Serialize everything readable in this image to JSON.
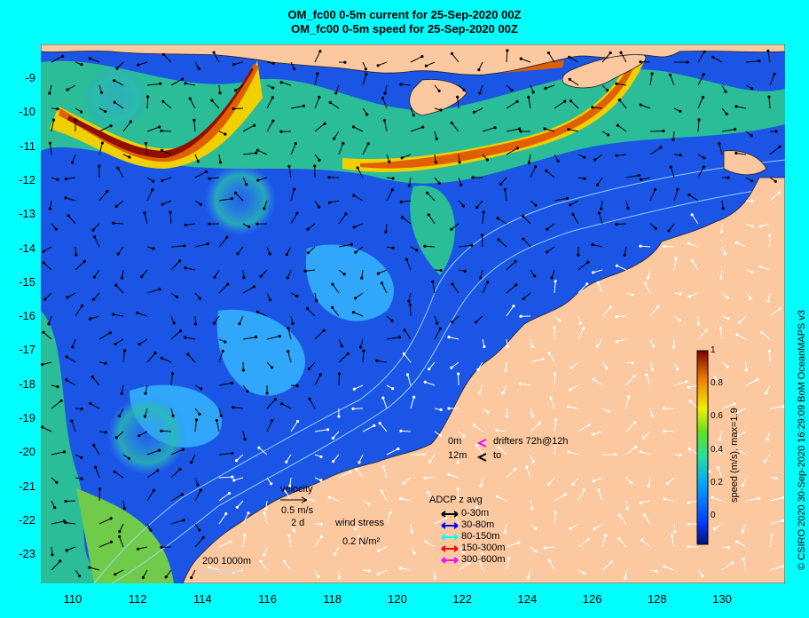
{
  "title": {
    "line1": "OM_fc00 0-5m current for 25-Sep-2020 00Z",
    "line2": "OM_fc00 0-5m speed for 25-Sep-2020 00Z"
  },
  "map": {
    "lon_range": [
      109,
      132
    ],
    "lat_range": [
      -24,
      -8
    ],
    "lon_ticks": [
      "110",
      "112",
      "114",
      "116",
      "118",
      "120",
      "122",
      "124",
      "126",
      "128",
      "130"
    ],
    "lat_ticks": [
      "-9",
      "-10",
      "-11",
      "-12",
      "-13",
      "-14",
      "-15",
      "-16",
      "-17",
      "-18",
      "-19",
      "-20",
      "-21",
      "-22",
      "-23"
    ],
    "colors": {
      "land": "#fcc8a0",
      "ocean_low": "#1a4fe0",
      "ocean_mid": "#3aa0ff",
      "fast": "#d05000",
      "border": "#00ffff"
    }
  },
  "colorbar": {
    "label": "speed (m/s), max=1.9",
    "ticks": [
      "1",
      "0.8",
      "0.6",
      "0.4",
      "0.2",
      "0"
    ]
  },
  "drifters": {
    "row1_depth": "0m",
    "row1_text": "drifters 72h@12h",
    "row2_depth": "12m",
    "row2_text": "to"
  },
  "velocity_key": {
    "label": "velocity",
    "speed": "0.5 m/s",
    "duration": "2 d"
  },
  "wind_key": {
    "label": "wind stress",
    "value": "0.2 N/m²"
  },
  "adcp": {
    "title": "ADCP z avg",
    "items": [
      {
        "label": "0-30m",
        "color": "#000000"
      },
      {
        "label": "30-80m",
        "color": "#0000ff"
      },
      {
        "label": "80-150m",
        "color": "#00ffff"
      },
      {
        "label": "150-300m",
        "color": "#ff0000"
      },
      {
        "label": "300-600m",
        "color": "#ff00ff"
      }
    ]
  },
  "bathy_key": "200  1000m",
  "credit": "© CSIRO 2020  30-Sep-2020 16:29:09 BoM OceanMAPS v3"
}
